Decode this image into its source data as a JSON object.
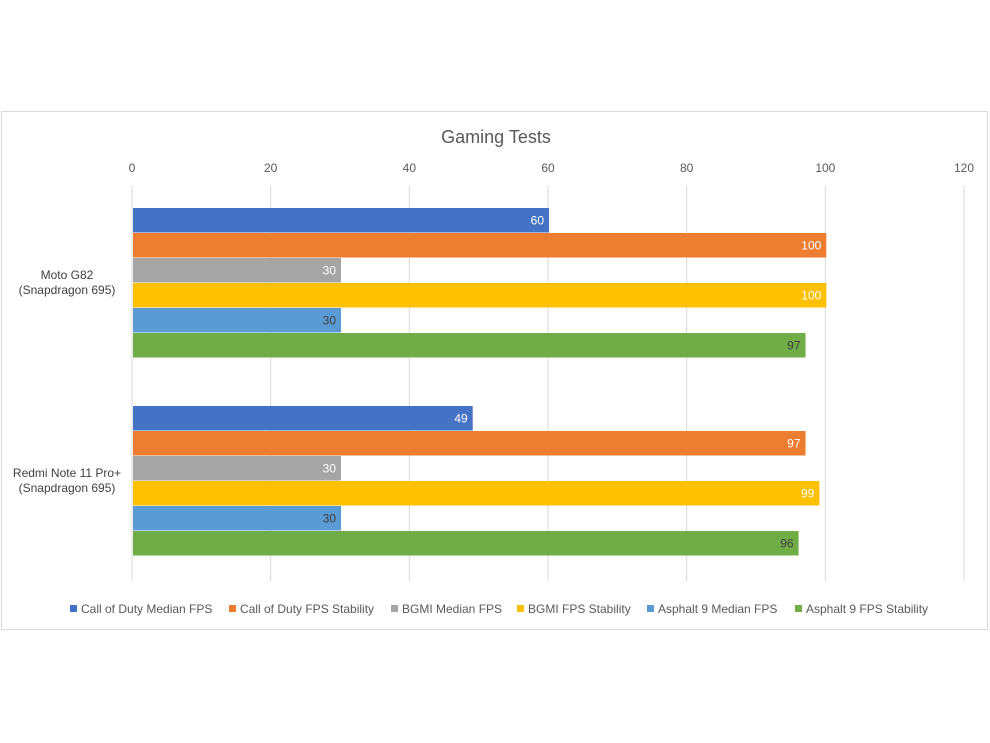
{
  "chart_data": {
    "type": "bar",
    "orientation": "horizontal",
    "title": "Gaming Tests",
    "xlim": [
      0,
      120
    ],
    "x_ticks": [
      0,
      20,
      40,
      60,
      80,
      100,
      120
    ],
    "x_axis_position": "top",
    "grid": true,
    "legend_position": "bottom",
    "categories": [
      [
        "Moto G82",
        "(Snapdragon 695)"
      ],
      [
        "Redmi Note 11 Pro+",
        "(Snapdragon 695)"
      ]
    ],
    "series": [
      {
        "name": "Call of Duty Median FPS",
        "color": "#4472c4",
        "label_color": "#ffffff",
        "values": [
          60,
          49
        ]
      },
      {
        "name": "Call of Duty FPS Stability",
        "color": "#ed7d31",
        "label_color": "#ffffff",
        "values": [
          100,
          97
        ]
      },
      {
        "name": "BGMI Median FPS",
        "color": "#a5a5a5",
        "label_color": "#ffffff",
        "values": [
          30,
          30
        ]
      },
      {
        "name": "BGMI FPS Stability",
        "color": "#ffc000",
        "label_color": "#ffffff",
        "values": [
          100,
          99
        ]
      },
      {
        "name": "Asphalt 9 Median FPS",
        "color": "#5b9bd5",
        "label_color": "#404040",
        "values": [
          30,
          30
        ]
      },
      {
        "name": "Asphalt 9 FPS Stability",
        "color": "#70ad47",
        "label_color": "#404040",
        "values": [
          97,
          96
        ]
      }
    ]
  }
}
